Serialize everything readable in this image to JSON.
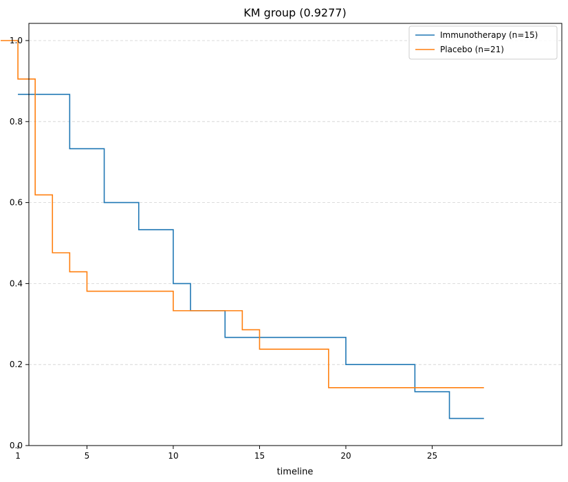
{
  "chart_data": {
    "type": "line",
    "title": "KM group (0.9277)",
    "xlabel": "timeline",
    "ylabel": "",
    "xlim": [
      0.0,
      28.5
    ],
    "ylim": [
      0,
      1.05
    ],
    "xticks": [
      1,
      5,
      10,
      15,
      20,
      25
    ],
    "yticks": [
      0.0,
      0.2,
      0.4,
      0.6,
      0.8,
      1.0
    ],
    "grid": "y-dashed",
    "legend_position": "top-right",
    "series": [
      {
        "name": "Immunotherapy (n=15)",
        "color": "#1f77b4",
        "steps": [
          [
            1,
            0.867
          ],
          [
            4,
            0.733
          ],
          [
            6,
            0.6
          ],
          [
            8,
            0.533
          ],
          [
            10,
            0.4
          ],
          [
            11,
            0.333
          ],
          [
            13,
            0.267
          ],
          [
            20,
            0.2
          ],
          [
            24,
            0.133
          ],
          [
            26,
            0.067
          ],
          [
            28,
            0.067
          ]
        ]
      },
      {
        "name": "Placebo (n=21)",
        "color": "#ff7f0e",
        "steps": [
          [
            0.0,
            1.0
          ],
          [
            1,
            0.905
          ],
          [
            2,
            0.619
          ],
          [
            3,
            0.476
          ],
          [
            4,
            0.429
          ],
          [
            5,
            0.381
          ],
          [
            10,
            0.333
          ],
          [
            14,
            0.286
          ],
          [
            15,
            0.238
          ],
          [
            19,
            0.143
          ],
          [
            28,
            0.143
          ]
        ]
      }
    ]
  }
}
